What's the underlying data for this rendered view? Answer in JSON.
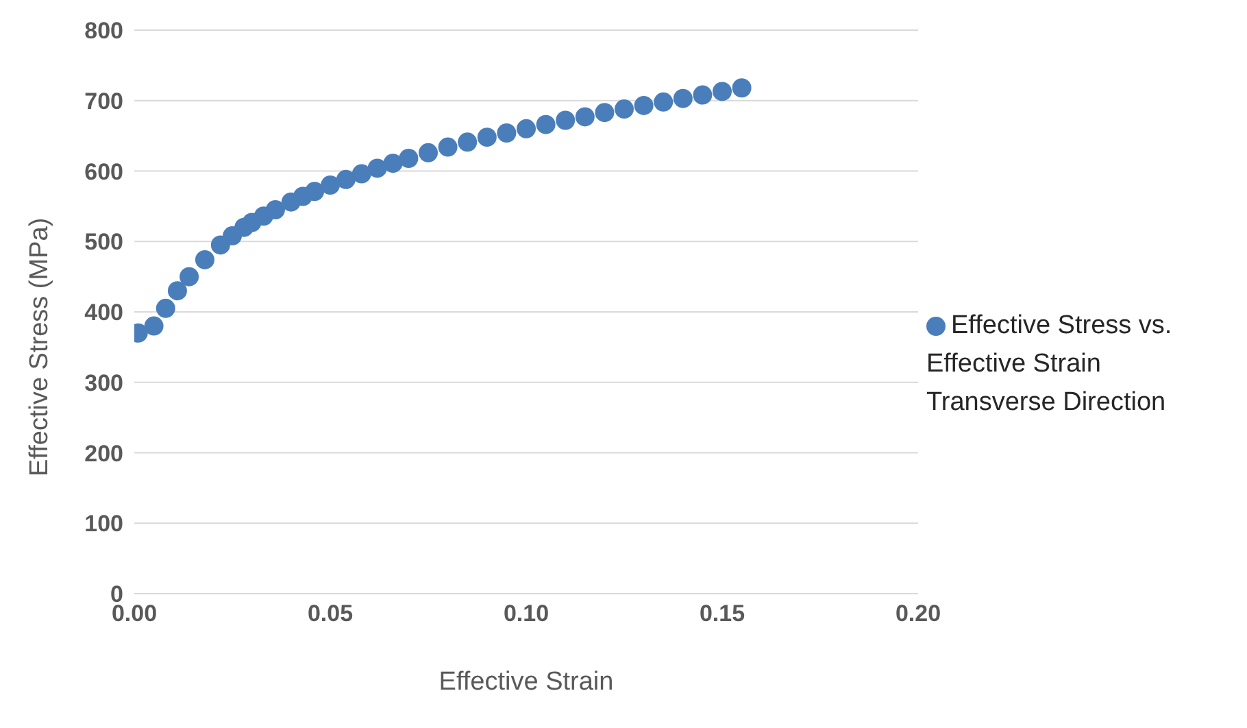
{
  "chart_data": {
    "type": "scatter",
    "xlabel": "Effective Strain",
    "ylabel": "Effective Stress  (MPa)",
    "x": [
      0.001,
      0.005,
      0.008,
      0.011,
      0.014,
      0.018,
      0.022,
      0.025,
      0.028,
      0.03,
      0.033,
      0.036,
      0.04,
      0.043,
      0.046,
      0.05,
      0.054,
      0.058,
      0.062,
      0.066,
      0.07,
      0.075,
      0.08,
      0.085,
      0.09,
      0.095,
      0.1,
      0.105,
      0.11,
      0.115,
      0.12,
      0.125,
      0.13,
      0.135,
      0.14,
      0.145,
      0.15,
      0.155
    ],
    "series": [
      {
        "name": "Effective Stress vs. Effective Strain Transverse Direction",
        "color": "#4a7ebb",
        "values": [
          370,
          380,
          405,
          430,
          450,
          474,
          495,
          508,
          520,
          527,
          536,
          545,
          556,
          564,
          571,
          580,
          588,
          596,
          604,
          611,
          618,
          626,
          634,
          641,
          648,
          654,
          660,
          666,
          672,
          677,
          683,
          688,
          693,
          698,
          703,
          708,
          713,
          718
        ]
      }
    ],
    "xlim": [
      0,
      0.2
    ],
    "xticks": [
      {
        "value": 0,
        "label": "0.00"
      },
      {
        "value": 0.05,
        "label": "0.05"
      },
      {
        "value": 0.1,
        "label": "0.10"
      },
      {
        "value": 0.15,
        "label": "0.15"
      },
      {
        "value": 0.2,
        "label": "0.20"
      }
    ],
    "ylim": [
      0,
      800
    ],
    "yticks": [
      0,
      100,
      200,
      300,
      400,
      500,
      600,
      700,
      800
    ],
    "grid": "y",
    "legend": "right",
    "marker": "circle"
  }
}
